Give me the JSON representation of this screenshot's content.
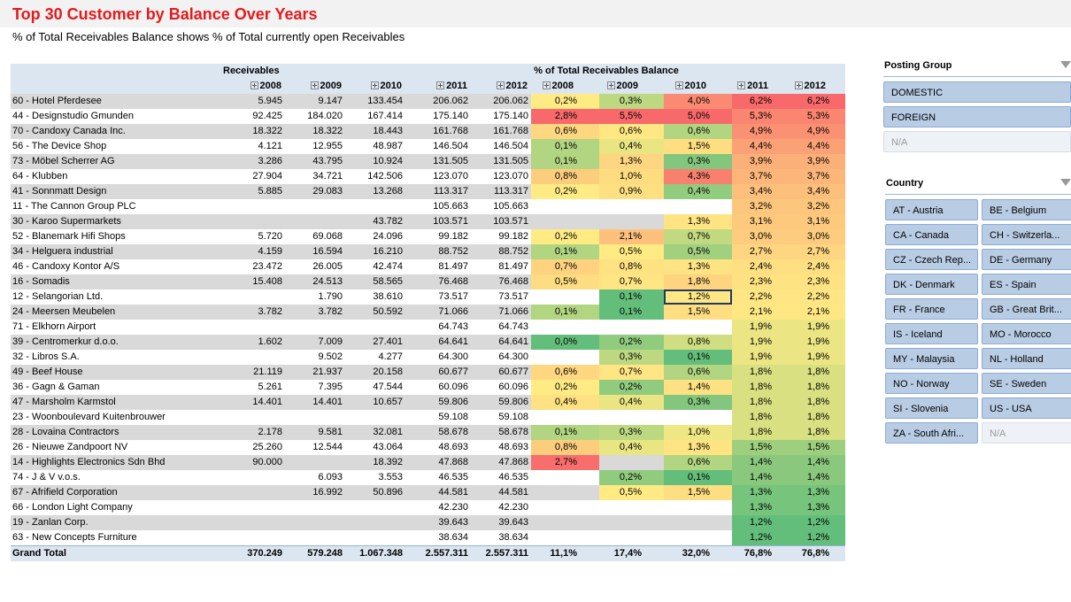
{
  "header": {
    "title": "Top 30 Customer by Balance Over Years",
    "subtitle": "% of Total Receivables Balance shows % of Total currently open Receivables"
  },
  "table": {
    "group_headers": [
      "Receivables",
      "% of Total Receivables Balance"
    ],
    "column_headers": [
      "2008",
      "2009",
      "2010",
      "2011",
      "2012",
      "2008",
      "2009",
      "2010",
      "2011",
      "2012"
    ],
    "heatmap": {
      "low": "#63be7b",
      "mid": "#ffeb84",
      "high": "#f8696b"
    },
    "rows": [
      [
        "60 - Hotel Pferdesee",
        "5.945",
        "9.147",
        "133.454",
        "206.062",
        "206.062",
        "0,2%",
        "0,3%",
        "4,0%",
        "6,2%",
        "6,2%"
      ],
      [
        "44 - Designstudio Gmunden",
        "92.425",
        "184.020",
        "167.414",
        "175.140",
        "175.140",
        "2,8%",
        "5,5%",
        "5,0%",
        "5,3%",
        "5,3%"
      ],
      [
        "70 - Candoxy Canada Inc.",
        "18.322",
        "18.322",
        "18.443",
        "161.768",
        "161.768",
        "0,6%",
        "0,6%",
        "0,6%",
        "4,9%",
        "4,9%"
      ],
      [
        "56 - The Device Shop",
        "4.121",
        "12.955",
        "48.987",
        "146.504",
        "146.504",
        "0,1%",
        "0,4%",
        "1,5%",
        "4,4%",
        "4,4%"
      ],
      [
        "73 - Möbel Scherrer AG",
        "3.286",
        "43.795",
        "10.924",
        "131.505",
        "131.505",
        "0,1%",
        "1,3%",
        "0,3%",
        "3,9%",
        "3,9%"
      ],
      [
        "64 - Klubben",
        "27.904",
        "34.721",
        "142.506",
        "123.070",
        "123.070",
        "0,8%",
        "1,0%",
        "4,3%",
        "3,7%",
        "3,7%"
      ],
      [
        "41 - Sonnmatt Design",
        "5.885",
        "29.083",
        "13.268",
        "113.317",
        "113.317",
        "0,2%",
        "0,9%",
        "0,4%",
        "3,4%",
        "3,4%"
      ],
      [
        "11 - The Cannon Group PLC",
        null,
        null,
        null,
        "105.663",
        "105.663",
        null,
        null,
        null,
        "3,2%",
        "3,2%"
      ],
      [
        "30 - Karoo Supermarkets",
        null,
        null,
        "43.782",
        "103.571",
        "103.571",
        null,
        null,
        "1,3%",
        "3,1%",
        "3,1%"
      ],
      [
        "52 - Blanemark Hifi Shops",
        "5.720",
        "69.068",
        "24.096",
        "99.182",
        "99.182",
        "0,2%",
        "2,1%",
        "0,7%",
        "3,0%",
        "3,0%"
      ],
      [
        "34 - Helguera industrial",
        "4.159",
        "16.594",
        "16.210",
        "88.752",
        "88.752",
        "0,1%",
        "0,5%",
        "0,5%",
        "2,7%",
        "2,7%"
      ],
      [
        "46 - Candoxy Kontor A/S",
        "23.472",
        "26.005",
        "42.474",
        "81.497",
        "81.497",
        "0,7%",
        "0,8%",
        "1,3%",
        "2,4%",
        "2,4%"
      ],
      [
        "16 - Somadis",
        "15.408",
        "24.513",
        "58.565",
        "76.468",
        "76.468",
        "0,5%",
        "0,7%",
        "1,8%",
        "2,3%",
        "2,3%"
      ],
      [
        "12 - Selangorian Ltd.",
        null,
        "1.790",
        "38.610",
        "73.517",
        "73.517",
        null,
        "0,1%",
        "1,2%",
        "2,2%",
        "2,2%"
      ],
      [
        "24 - Meersen Meubelen",
        "3.782",
        "3.782",
        "50.592",
        "71.066",
        "71.066",
        "0,1%",
        "0,1%",
        "1,5%",
        "2,1%",
        "2,1%"
      ],
      [
        "71 - Elkhorn Airport",
        null,
        null,
        null,
        "64.743",
        "64.743",
        null,
        null,
        null,
        "1,9%",
        "1,9%"
      ],
      [
        "39 - Centromerkur d.o.o.",
        "1.602",
        "7.009",
        "27.401",
        "64.641",
        "64.641",
        "0,0%",
        "0,2%",
        "0,8%",
        "1,9%",
        "1,9%"
      ],
      [
        "32 - Libros S.A.",
        null,
        "9.502",
        "4.277",
        "64.300",
        "64.300",
        null,
        "0,3%",
        "0,1%",
        "1,9%",
        "1,9%"
      ],
      [
        "49 - Beef House",
        "21.119",
        "21.937",
        "20.158",
        "60.677",
        "60.677",
        "0,6%",
        "0,7%",
        "0,6%",
        "1,8%",
        "1,8%"
      ],
      [
        "36 - Gagn & Gaman",
        "5.261",
        "7.395",
        "47.544",
        "60.096",
        "60.096",
        "0,2%",
        "0,2%",
        "1,4%",
        "1,8%",
        "1,8%"
      ],
      [
        "47 - Marsholm Karmstol",
        "14.401",
        "14.401",
        "10.657",
        "59.806",
        "59.806",
        "0,4%",
        "0,4%",
        "0,3%",
        "1,8%",
        "1,8%"
      ],
      [
        "23 - Woonboulevard Kuitenbrouwer",
        null,
        null,
        null,
        "59.108",
        "59.108",
        null,
        null,
        null,
        "1,8%",
        "1,8%"
      ],
      [
        "28 - Lovaina Contractors",
        "2.178",
        "9.581",
        "32.081",
        "58.678",
        "58.678",
        "0,1%",
        "0,3%",
        "1,0%",
        "1,8%",
        "1,8%"
      ],
      [
        "26 - Nieuwe Zandpoort NV",
        "25.260",
        "12.544",
        "43.064",
        "48.693",
        "48.693",
        "0,8%",
        "0,4%",
        "1,3%",
        "1,5%",
        "1,5%"
      ],
      [
        "14 - Highlights Electronics Sdn Bhd",
        "90.000",
        null,
        "18.392",
        "47.868",
        "47.868",
        "2,7%",
        null,
        "0,6%",
        "1,4%",
        "1,4%"
      ],
      [
        "74 - J & V v.o.s.",
        null,
        "6.093",
        "3.553",
        "46.535",
        "46.535",
        null,
        "0,2%",
        "0,1%",
        "1,4%",
        "1,4%"
      ],
      [
        "67 - Afrifield Corporation",
        null,
        "16.992",
        "50.896",
        "44.581",
        "44.581",
        null,
        "0,5%",
        "1,5%",
        "1,3%",
        "1,3%"
      ],
      [
        "66 - London Light Company",
        null,
        null,
        null,
        "42.230",
        "42.230",
        null,
        null,
        null,
        "1,3%",
        "1,3%"
      ],
      [
        "19 - Zanlan Corp.",
        null,
        null,
        null,
        "39.643",
        "39.643",
        null,
        null,
        null,
        "1,2%",
        "1,2%"
      ],
      [
        "63 - New Concepts Furniture",
        null,
        null,
        null,
        "38.634",
        "38.634",
        null,
        null,
        null,
        "1,2%",
        "1,2%"
      ]
    ],
    "total": [
      "Grand Total",
      "370.249",
      "579.248",
      "1.067.348",
      "2.557.311",
      "2.557.311",
      "11,1%",
      "17,4%",
      "32,0%",
      "76,8%",
      "76,8%"
    ]
  },
  "slicers": [
    {
      "title": "Posting Group",
      "items": [
        {
          "label": "DOMESTIC",
          "available": true
        },
        {
          "label": "FOREIGN",
          "available": true
        },
        {
          "label": "N/A",
          "available": false
        }
      ]
    },
    {
      "title": "Country",
      "items": [
        {
          "label": "AT - Austria",
          "available": true
        },
        {
          "label": "BE - Belgium",
          "available": true
        },
        {
          "label": "CA - Canada",
          "available": true
        },
        {
          "label": "CH - Switzerla...",
          "available": true
        },
        {
          "label": "CZ - Czech Rep...",
          "available": true
        },
        {
          "label": "DE - Germany",
          "available": true
        },
        {
          "label": "DK - Denmark",
          "available": true
        },
        {
          "label": "ES - Spain",
          "available": true
        },
        {
          "label": "FR - France",
          "available": true
        },
        {
          "label": "GB - Great Brit...",
          "available": true
        },
        {
          "label": "IS - Iceland",
          "available": true
        },
        {
          "label": "MO - Morocco",
          "available": true
        },
        {
          "label": "MY - Malaysia",
          "available": true
        },
        {
          "label": "NL - Holland",
          "available": true
        },
        {
          "label": "NO - Norway",
          "available": true
        },
        {
          "label": "SE - Sweden",
          "available": true
        },
        {
          "label": "SI - Slovenia",
          "available": true
        },
        {
          "label": "US - USA",
          "available": true
        },
        {
          "label": "ZA - South Afri...",
          "available": true
        },
        {
          "label": "N/A",
          "available": false
        }
      ]
    }
  ]
}
